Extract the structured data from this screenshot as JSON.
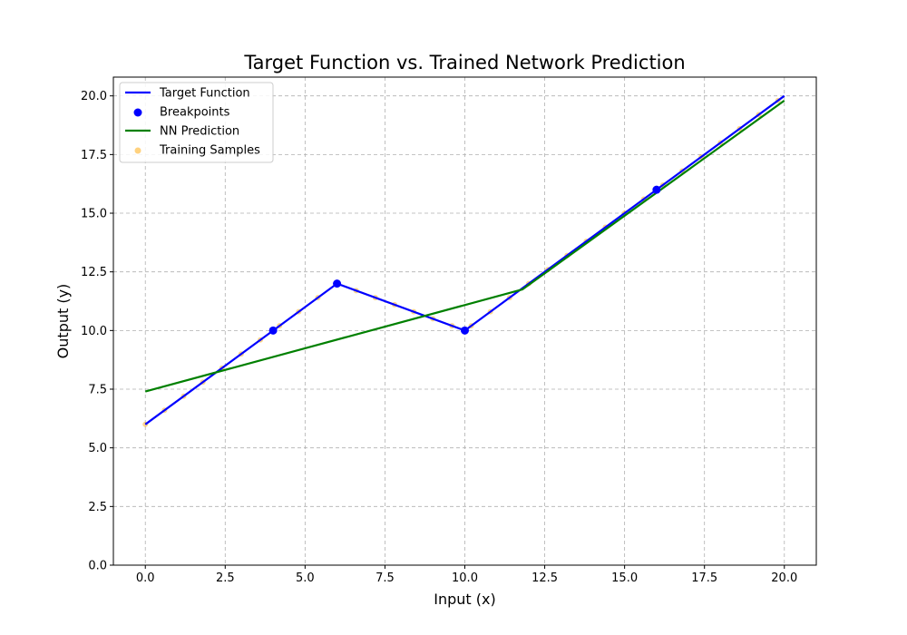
{
  "chart_data": {
    "type": "line",
    "title": "Target Function vs. Trained Network Prediction",
    "xlabel": "Input (x)",
    "ylabel": "Output (y)",
    "xlim": [
      -1,
      21
    ],
    "ylim": [
      0,
      20.8
    ],
    "xticks": [
      0,
      2.5,
      5,
      7.5,
      10,
      12.5,
      15,
      17.5,
      20
    ],
    "xtick_labels": [
      "0.0",
      "2.5",
      "5.0",
      "7.5",
      "10.0",
      "12.5",
      "15.0",
      "17.5",
      "20.0"
    ],
    "yticks": [
      0,
      2.5,
      5,
      7.5,
      10,
      12.5,
      15,
      17.5,
      20
    ],
    "ytick_labels": [
      "0.0",
      "2.5",
      "5.0",
      "7.5",
      "10.0",
      "12.5",
      "15.0",
      "17.5",
      "20.0"
    ],
    "grid": true,
    "legend_position": "top-left",
    "series": [
      {
        "name": "Target Function",
        "kind": "line",
        "color": "#0000ff",
        "x": [
          0,
          4,
          6,
          10,
          16,
          20
        ],
        "y": [
          6,
          10,
          12,
          10,
          16,
          20
        ]
      },
      {
        "name": "Breakpoints",
        "kind": "scatter",
        "color": "#0000ff",
        "x": [
          4,
          6,
          10,
          16
        ],
        "y": [
          10,
          12,
          10,
          16
        ]
      },
      {
        "name": "NN Prediction",
        "kind": "line",
        "color": "#008000",
        "x": [
          0,
          11.8,
          20
        ],
        "y": [
          7.4,
          11.75,
          19.8
        ]
      },
      {
        "name": "Training Samples",
        "kind": "scatter",
        "color": "#ffa500",
        "x": [
          0,
          0.6,
          1.2,
          1.8,
          2.4,
          3.0,
          3.6,
          4.2,
          4.8,
          5.4,
          6.0,
          6.6,
          7.2,
          7.8,
          8.4,
          9.0,
          9.6,
          10.2,
          10.8,
          11.4,
          12.0,
          12.6,
          13.2,
          13.8,
          14.4,
          15.0,
          15.6,
          16.2,
          16.8,
          17.4,
          18.0,
          18.6,
          19.2,
          19.8
        ],
        "y": [
          6.0,
          6.6,
          7.2,
          7.8,
          8.4,
          9.0,
          9.6,
          10.2,
          10.8,
          11.4,
          12.0,
          11.7,
          11.4,
          11.1,
          10.8,
          10.5,
          10.2,
          10.2,
          10.8,
          11.4,
          12.0,
          12.6,
          13.2,
          13.8,
          14.4,
          15.0,
          15.6,
          16.2,
          16.8,
          17.4,
          18.0,
          18.6,
          19.2,
          19.8
        ]
      }
    ]
  }
}
